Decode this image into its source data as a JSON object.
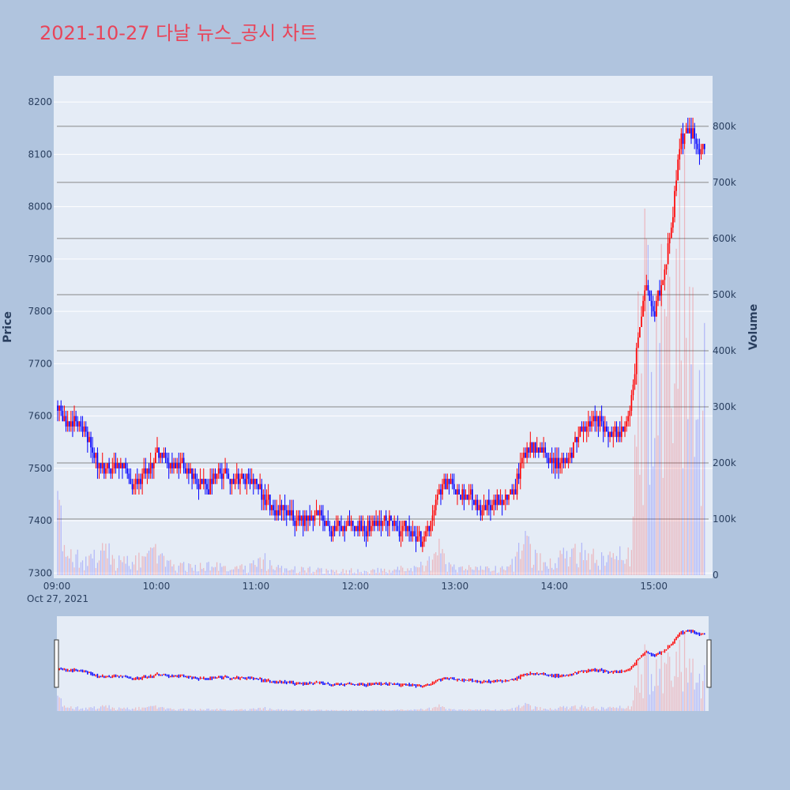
{
  "chart_data": {
    "type": "candlestick",
    "title": "2021-10-27 다날 뉴스_공시 차트",
    "date_label": "Oct 27, 2021",
    "y_axis_left": {
      "label": "Price",
      "range": [
        7290,
        8250
      ],
      "ticks": [
        "7300",
        "7400",
        "7500",
        "7600",
        "7700",
        "7800",
        "7900",
        "8000",
        "8100",
        "8200"
      ]
    },
    "y_axis_right": {
      "label": "Volume",
      "range": [
        0,
        890000
      ],
      "ticks": [
        "0",
        "100k",
        "200k",
        "300k",
        "400k",
        "500k",
        "600k",
        "700k",
        "800k"
      ]
    },
    "x_axis": {
      "range": [
        "09:00",
        "15:30"
      ],
      "ticks": [
        "09:00",
        "10:00",
        "11:00",
        "12:00",
        "13:00",
        "14:00",
        "15:00"
      ]
    },
    "colors": {
      "up": "#ff0000",
      "down": "#0000ff",
      "plot_bg": "#e5ecf6",
      "page_bg": "#b0c4de",
      "title": "#e8455a"
    },
    "price_path": [
      [
        "09:00",
        7620
      ],
      [
        "09:05",
        7580
      ],
      [
        "09:10",
        7600
      ],
      [
        "09:15",
        7580
      ],
      [
        "09:20",
        7540
      ],
      [
        "09:25",
        7500
      ],
      [
        "09:30",
        7490
      ],
      [
        "09:35",
        7510
      ],
      [
        "09:40",
        7500
      ],
      [
        "09:45",
        7470
      ],
      [
        "09:50",
        7480
      ],
      [
        "09:55",
        7500
      ],
      [
        "10:00",
        7530
      ],
      [
        "10:05",
        7520
      ],
      [
        "10:10",
        7510
      ],
      [
        "10:15",
        7500
      ],
      [
        "10:20",
        7490
      ],
      [
        "10:25",
        7480
      ],
      [
        "10:30",
        7470
      ],
      [
        "10:35",
        7480
      ],
      [
        "10:40",
        7490
      ],
      [
        "10:45",
        7470
      ],
      [
        "10:50",
        7480
      ],
      [
        "10:55",
        7490
      ],
      [
        "11:00",
        7470
      ],
      [
        "11:05",
        7440
      ],
      [
        "11:10",
        7420
      ],
      [
        "11:15",
        7420
      ],
      [
        "11:20",
        7410
      ],
      [
        "11:25",
        7400
      ],
      [
        "11:30",
        7400
      ],
      [
        "11:35",
        7410
      ],
      [
        "11:40",
        7400
      ],
      [
        "11:45",
        7390
      ],
      [
        "11:50",
        7390
      ],
      [
        "11:55",
        7390
      ],
      [
        "12:00",
        7390
      ],
      [
        "12:05",
        7390
      ],
      [
        "12:10",
        7390
      ],
      [
        "12:15",
        7400
      ],
      [
        "12:20",
        7400
      ],
      [
        "12:25",
        7390
      ],
      [
        "12:30",
        7380
      ],
      [
        "12:35",
        7370
      ],
      [
        "12:40",
        7360
      ],
      [
        "12:45",
        7400
      ],
      [
        "12:50",
        7460
      ],
      [
        "12:55",
        7470
      ],
      [
        "13:00",
        7460
      ],
      [
        "13:05",
        7450
      ],
      [
        "13:10",
        7440
      ],
      [
        "13:15",
        7420
      ],
      [
        "13:20",
        7430
      ],
      [
        "13:25",
        7440
      ],
      [
        "13:30",
        7440
      ],
      [
        "13:35",
        7450
      ],
      [
        "13:40",
        7520
      ],
      [
        "13:45",
        7540
      ],
      [
        "13:50",
        7540
      ],
      [
        "13:55",
        7530
      ],
      [
        "14:00",
        7510
      ],
      [
        "14:05",
        7510
      ],
      [
        "14:10",
        7530
      ],
      [
        "14:15",
        7570
      ],
      [
        "14:20",
        7580
      ],
      [
        "14:25",
        7590
      ],
      [
        "14:30",
        7580
      ],
      [
        "14:35",
        7560
      ],
      [
        "14:40",
        7570
      ],
      [
        "14:45",
        7600
      ],
      [
        "14:50",
        7750
      ],
      [
        "14:55",
        7850
      ],
      [
        "15:00",
        7800
      ],
      [
        "15:05",
        7870
      ],
      [
        "15:10",
        7950
      ],
      [
        "15:15",
        8120
      ],
      [
        "15:20",
        8150
      ],
      [
        "15:25",
        8130
      ],
      [
        "15:30",
        8110
      ]
    ],
    "volume_profile": [
      [
        "09:00",
        120000
      ],
      [
        "09:05",
        40000
      ],
      [
        "09:10",
        30000
      ],
      [
        "09:15",
        25000
      ],
      [
        "09:20",
        30000
      ],
      [
        "09:25",
        30000
      ],
      [
        "09:30",
        50000
      ],
      [
        "09:35",
        25000
      ],
      [
        "09:40",
        30000
      ],
      [
        "09:45",
        20000
      ],
      [
        "09:50",
        25000
      ],
      [
        "09:55",
        30000
      ],
      [
        "10:00",
        40000
      ],
      [
        "10:05",
        20000
      ],
      [
        "10:10",
        15000
      ],
      [
        "10:15",
        15000
      ],
      [
        "10:20",
        15000
      ],
      [
        "10:25",
        15000
      ],
      [
        "10:30",
        25000
      ],
      [
        "10:35",
        15000
      ],
      [
        "10:40",
        15000
      ],
      [
        "10:45",
        12000
      ],
      [
        "10:50",
        12000
      ],
      [
        "10:55",
        12000
      ],
      [
        "11:00",
        20000
      ],
      [
        "11:05",
        25000
      ],
      [
        "11:10",
        12000
      ],
      [
        "11:15",
        10000
      ],
      [
        "11:20",
        10000
      ],
      [
        "11:25",
        10000
      ],
      [
        "11:30",
        10000
      ],
      [
        "11:35",
        8000
      ],
      [
        "11:40",
        8000
      ],
      [
        "11:45",
        8000
      ],
      [
        "11:50",
        8000
      ],
      [
        "11:55",
        8000
      ],
      [
        "12:00",
        8000
      ],
      [
        "12:05",
        8000
      ],
      [
        "12:10",
        8000
      ],
      [
        "12:15",
        8000
      ],
      [
        "12:20",
        8000
      ],
      [
        "12:25",
        10000
      ],
      [
        "12:30",
        10000
      ],
      [
        "12:35",
        12000
      ],
      [
        "12:40",
        15000
      ],
      [
        "12:45",
        25000
      ],
      [
        "12:50",
        40000
      ],
      [
        "12:55",
        20000
      ],
      [
        "13:00",
        15000
      ],
      [
        "13:05",
        12000
      ],
      [
        "13:10",
        10000
      ],
      [
        "13:15",
        10000
      ],
      [
        "13:20",
        10000
      ],
      [
        "13:25",
        10000
      ],
      [
        "13:30",
        12000
      ],
      [
        "13:35",
        20000
      ],
      [
        "13:40",
        60000
      ],
      [
        "13:45",
        40000
      ],
      [
        "13:50",
        25000
      ],
      [
        "13:55",
        20000
      ],
      [
        "14:00",
        20000
      ],
      [
        "14:05",
        30000
      ],
      [
        "14:10",
        40000
      ],
      [
        "14:15",
        35000
      ],
      [
        "14:20",
        30000
      ],
      [
        "14:25",
        30000
      ],
      [
        "14:30",
        25000
      ],
      [
        "14:35",
        25000
      ],
      [
        "14:40",
        35000
      ],
      [
        "14:45",
        50000
      ],
      [
        "14:50",
        350000
      ],
      [
        "14:55",
        450000
      ],
      [
        "15:00",
        380000
      ],
      [
        "15:05",
        360000
      ],
      [
        "15:10",
        420000
      ],
      [
        "15:15",
        520000
      ],
      [
        "15:20",
        440000
      ],
      [
        "15:25",
        360000
      ],
      [
        "15:30",
        340000
      ]
    ],
    "range_slider": true,
    "grid": true,
    "legend": "none"
  }
}
